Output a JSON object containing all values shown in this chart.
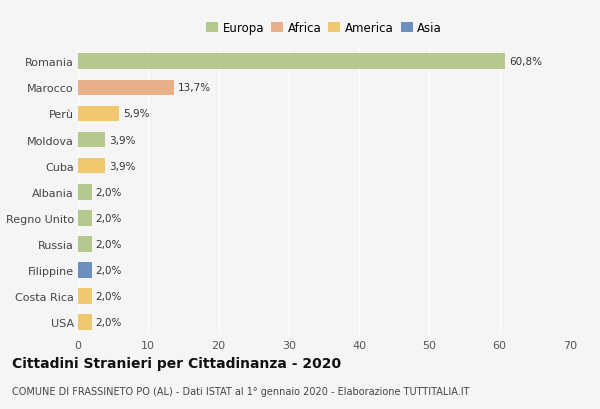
{
  "countries": [
    "Romania",
    "Marocco",
    "Perù",
    "Moldova",
    "Cuba",
    "Albania",
    "Regno Unito",
    "Russia",
    "Filippine",
    "Costa Rica",
    "USA"
  ],
  "values": [
    60.8,
    13.7,
    5.9,
    3.9,
    3.9,
    2.0,
    2.0,
    2.0,
    2.0,
    2.0,
    2.0
  ],
  "labels": [
    "60,8%",
    "13,7%",
    "5,9%",
    "3,9%",
    "3,9%",
    "2,0%",
    "2,0%",
    "2,0%",
    "2,0%",
    "2,0%",
    "2,0%"
  ],
  "colors": [
    "#b5c98e",
    "#e8b08a",
    "#f0c96e",
    "#b5c98e",
    "#f0c96e",
    "#b5c98e",
    "#b5c98e",
    "#b5c98e",
    "#6b8fbf",
    "#f0c96e",
    "#f0c96e"
  ],
  "legend_labels": [
    "Europa",
    "Africa",
    "America",
    "Asia"
  ],
  "legend_colors": [
    "#b5c98e",
    "#e8b08a",
    "#f0c96e",
    "#6b8fbf"
  ],
  "xlim": [
    0,
    70
  ],
  "xticks": [
    0,
    10,
    20,
    30,
    40,
    50,
    60,
    70
  ],
  "title": "Cittadini Stranieri per Cittadinanza - 2020",
  "subtitle": "COMUNE DI FRASSINETO PO (AL) - Dati ISTAT al 1° gennaio 2020 - Elaborazione TUTTITALIA.IT",
  "bg_color": "#f5f5f5",
  "grid_color": "#ffffff",
  "bar_label_fontsize": 7.5,
  "ytick_fontsize": 8,
  "xtick_fontsize": 8,
  "legend_fontsize": 8.5,
  "title_fontsize": 10,
  "subtitle_fontsize": 7
}
